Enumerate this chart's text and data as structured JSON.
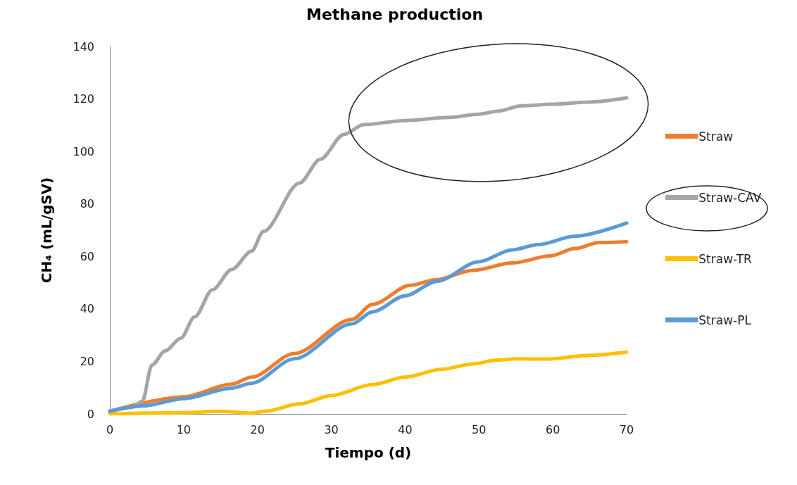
{
  "chart_data": {
    "type": "line",
    "title": "Methane production",
    "xlabel": "Tiempo (d)",
    "ylabel": "CH₄ (mL/gSV)",
    "xlim": [
      0,
      70
    ],
    "xticks": [
      0,
      10,
      20,
      30,
      40,
      50,
      60,
      70
    ],
    "ylim": [
      0,
      140
    ],
    "yticks": [
      0,
      20,
      40,
      60,
      80,
      100,
      120,
      140
    ],
    "grid": false,
    "legend": "right",
    "marker": "none",
    "line_style": "solid",
    "series": [
      {
        "name": "Straw",
        "color": "#ed7d31",
        "x": [
          0,
          10,
          16.5,
          19.2,
          25,
          32.8,
          35.6,
          40.7,
          44,
          49.2,
          54.5,
          59.7,
          63,
          66.3,
          70
        ],
        "values": [
          1,
          6.5,
          11.3,
          14,
          23,
          36,
          41.8,
          49,
          51,
          54.7,
          57.5,
          60.2,
          63,
          65.3,
          65.6
        ]
      },
      {
        "name": "Straw-CAV",
        "color": "#a5a5a5",
        "x": [
          0,
          3,
          4.4,
          5.7,
          7.5,
          9.6,
          11.5,
          13.9,
          16.5,
          19.2,
          20.8,
          25.7,
          28.5,
          31.7,
          34.4,
          40,
          46,
          50,
          52.5,
          55.8,
          60,
          65,
          70
        ],
        "values": [
          1,
          2.5,
          4.8,
          18.6,
          24,
          28.8,
          37,
          47.3,
          55,
          62,
          69.5,
          88,
          97,
          106.5,
          110.2,
          111.8,
          113,
          114.2,
          115.3,
          117.4,
          118,
          118.8,
          120.4
        ]
      },
      {
        "name": "Straw-TR",
        "color": "#ffc000",
        "x": [
          0,
          10,
          15,
          19.2,
          21,
          25.7,
          30,
          35.6,
          40,
          45,
          49,
          52.5,
          55,
          59.1,
          65,
          70
        ],
        "values": [
          0,
          0.5,
          1,
          0.3,
          1,
          3.8,
          7,
          11.2,
          14,
          17,
          19,
          20.5,
          21,
          20.9,
          22.3,
          23.6
        ]
      },
      {
        "name": "Straw-PL",
        "color": "#5b9bd5",
        "x": [
          0,
          4.4,
          10,
          16.5,
          19.2,
          25,
          32.8,
          35.6,
          40,
          44.3,
          49.9,
          54.5,
          58,
          63,
          70
        ],
        "values": [
          1,
          3,
          5.8,
          9.8,
          11.7,
          21,
          34.3,
          38.9,
          45,
          50.5,
          57.9,
          62.5,
          64.5,
          67.7,
          72.7
        ]
      }
    ]
  }
}
